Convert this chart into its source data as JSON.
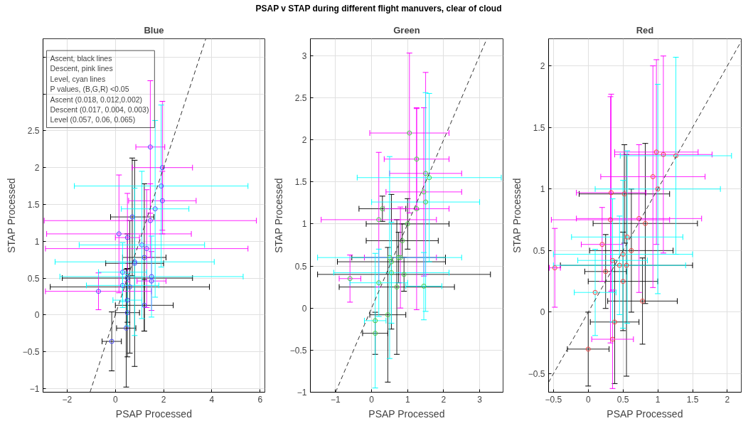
{
  "chart_data": [
    {
      "type": "scatter",
      "title": "Blue",
      "xlabel": "PSAP Processed",
      "ylabel": "STAP Processed",
      "xlim": [
        -3,
        6.2
      ],
      "ylim": [
        -1.05,
        3.75
      ],
      "xticks": [
        -2,
        0,
        2,
        4,
        6
      ],
      "yticks": [
        -1,
        -0.5,
        0,
        0.5,
        1,
        1.5,
        2,
        2.5,
        {
          "value": 3,
          "label": null
        },
        {
          "value": 3.5,
          "label": null
        }
      ],
      "grid": true,
      "marker": "circle",
      "annotations": [
        "Ascent, black lines\nDescent, pink lines\nLevel, cyan lines",
        "P values, (B,G,R) <0.05\nAscent (0.018, 0.012,0.002)\nDescent (0.017, 0.004,  0.003)\nLevel (0.057, 0.06, 0.065)"
      ],
      "series": [
        {
          "color": "#000000",
          "colors": [
            "#4a4aff",
            "#4a4aff",
            "#4a4aff",
            "#4a4aff",
            "#4a4aff",
            "#4a4aff",
            "#4a4aff",
            "#4a4aff",
            "#4a4aff"
          ],
          "x": [
            0.7,
            1.2,
            0.5,
            0.6,
            -0.15,
            0.45,
            1.2,
            0.8,
            0.5
          ],
          "values": [
            1.33,
            0.78,
            0.5,
            0.38,
            -0.36,
            -0.18,
            0.13,
            0.7,
            0.03
          ],
          "xerrors": [
            0.9,
            0.9,
            2.7,
            3.3,
            0.4,
            0.4,
            1.2,
            1.2,
            0.5
          ],
          "errors": [
            0.8,
            1.0,
            0.6,
            0.9,
            0.4,
            0.8,
            0.35,
            1.4,
            0.6
          ]
        },
        {
          "color": "#ff00ff",
          "colors": [
            "#4a4aff",
            "#4a4aff",
            "#4a4aff",
            "#4a4aff",
            "#4a4aff",
            "#4a4aff",
            "#4a4aff",
            "#4a4aff",
            "#4a4aff"
          ],
          "x": [
            1.45,
            1.95,
            1.95,
            1.45,
            0.15,
            1.3,
            -0.7,
            1.5,
            0.5
          ],
          "values": [
            2.28,
            2.0,
            1.55,
            1.28,
            1.1,
            0.9,
            0.32,
            0.46,
            1.05
          ],
          "xerrors": [
            0.6,
            1.25,
            1.4,
            4.4,
            3.0,
            4.2,
            2.2,
            0.6,
            0.5
          ],
          "errors": [
            0.9,
            0.9,
            0.4,
            0.5,
            0.8,
            0.8,
            0.25,
            0.4,
            0.6
          ]
        },
        {
          "color": "#00ffff",
          "colors": [
            "#4a4aff",
            "#4a4aff",
            "#4a4aff",
            "#4a4aff",
            "#4a4aff",
            "#4a4aff",
            "#4a4aff",
            "#4a4aff"
          ],
          "x": [
            1.9,
            1.65,
            0.8,
            1.1,
            0.3,
            1.5,
            0.3,
            0.5
          ],
          "values": [
            1.75,
            1.44,
            0.72,
            0.95,
            0.4,
            0.52,
            0.58,
            0.2
          ],
          "xerrors": [
            3.6,
            1.4,
            3.3,
            2.6,
            1.5,
            3.8,
            1.0,
            0.6
          ],
          "errors": [
            1.1,
            1.2,
            1.0,
            1.0,
            0.3,
            0.55,
            0.4,
            0.35
          ]
        },
        {
          "type": "line",
          "color": "#333333",
          "line_style": "dashed",
          "marker": "none",
          "x": [
            -1.05,
            3.75
          ],
          "values": [
            -1.05,
            3.75
          ]
        }
      ]
    },
    {
      "type": "scatter",
      "title": "Green",
      "xlabel": "PSAP Processed",
      "ylabel": "STAP Processed",
      "xlim": [
        -1.7,
        3.65
      ],
      "ylim": [
        -1,
        3.2
      ],
      "xticks": [
        -1,
        0,
        1,
        2,
        3
      ],
      "yticks": [
        -1,
        -0.5,
        0,
        0.5,
        1,
        1.5,
        2,
        2.5,
        3
      ],
      "grid": true,
      "marker": "circle",
      "annotations": [
        "PSAP v STAP during different flight manuvers, clear of cloud"
      ],
      "series": [
        {
          "color": "#000000",
          "colors": [
            "#44cc44",
            "#44cc44",
            "#44cc44",
            "#44cc44",
            "#44cc44",
            "#44cc44",
            "#44cc44",
            "#44cc44",
            "#44cc44"
          ],
          "x": [
            0.55,
            0.3,
            1.0,
            0.85,
            0.1,
            0.75,
            0.9,
            0.45,
            0.7
          ],
          "values": [
            0.55,
            1.18,
            1.0,
            0.8,
            -0.3,
            0.6,
            0.4,
            -0.08,
            0.25
          ],
          "xerrors": [
            1.5,
            0.65,
            1.15,
            1.0,
            0.35,
            1.3,
            2.4,
            0.5,
            1.6
          ],
          "errors": [
            0.8,
            0.15,
            0.3,
            0.2,
            0.25,
            0.3,
            0.2,
            0.8,
            0.8
          ]
        },
        {
          "color": "#ff00ff",
          "colors": [
            "#44cc44",
            "#44cc44",
            "#44cc44",
            "#44cc44",
            "#44cc44",
            "#44cc44",
            "#44cc44",
            "#44cc44"
          ],
          "x": [
            1.05,
            1.25,
            1.5,
            1.45,
            0.2,
            -0.6,
            1.25,
            0.8
          ],
          "values": [
            2.08,
            1.77,
            1.6,
            1.38,
            1.05,
            0.35,
            1.18,
            0.6
          ],
          "xerrors": [
            1.1,
            0.9,
            1.0,
            1.05,
            1.6,
            0.3,
            0.9,
            1.0
          ],
          "errors": [
            0.95,
            0.6,
            1.2,
            1.0,
            0.8,
            0.28,
            1.2,
            0.6
          ]
        },
        {
          "color": "#00ffff",
          "colors": [
            "#44cc44",
            "#44cc44",
            "#44cc44",
            "#44cc44",
            "#44cc44",
            "#44cc44",
            "#44cc44"
          ],
          "x": [
            1.5,
            1.6,
            0.5,
            0.2,
            1.45,
            0.55,
            0.1
          ],
          "values": [
            1.26,
            1.55,
            0.6,
            0.3,
            0.26,
            0.42,
            -0.15
          ],
          "xerrors": [
            1.5,
            2.0,
            2.0,
            0.8,
            0.5,
            1.6,
            0.3
          ],
          "errors": [
            1.3,
            1.0,
            1.2,
            0.4,
            0.4,
            0.6,
            0.8
          ]
        },
        {
          "type": "line",
          "color": "#333333",
          "line_style": "dashed",
          "marker": "none",
          "x": [
            -1,
            3.2
          ],
          "values": [
            -1,
            3.2
          ]
        }
      ]
    },
    {
      "type": "scatter",
      "title": "Red",
      "xlabel": "PSAP Processed",
      "ylabel": "STAP Processed",
      "xlim": [
        -0.57,
        2.2
      ],
      "ylim": [
        -0.65,
        2.22
      ],
      "xticks": [
        -0.5,
        0,
        0.5,
        1,
        1.5,
        2
      ],
      "yticks": [
        -0.5,
        0,
        0.5,
        1,
        1.5,
        2
      ],
      "grid": true,
      "marker": "circle",
      "series": [
        {
          "color": "#000000",
          "colors": [
            "#ee4444",
            "#ee4444",
            "#ee4444",
            "#ee4444",
            "#ee4444",
            "#ee4444",
            "#ee4444",
            "#ee4444",
            "#ee4444"
          ],
          "x": [
            0.52,
            0.62,
            0.55,
            0.0,
            0.78,
            0.5,
            0.38,
            0.82,
            0.25
          ],
          "values": [
            0.96,
            0.5,
            0.38,
            -0.3,
            0.09,
            0.25,
            -0.08,
            0.72,
            0.33
          ],
          "xerrors": [
            0.65,
            0.6,
            0.95,
            0.3,
            0.5,
            0.5,
            0.35,
            0.75,
            0.3
          ],
          "errors": [
            0.4,
            0.5,
            0.9,
            0.3,
            0.35,
            0.4,
            0.5,
            0.65,
            0.3
          ]
        },
        {
          "color": "#ff00ff",
          "colors": [
            "#ee4444",
            "#ee4444",
            "#ee4444",
            "#ee4444",
            "#ee4444",
            "#ee4444",
            "#ee4444",
            "#ee4444",
            "#ee4444"
          ],
          "x": [
            0.98,
            1.08,
            0.93,
            0.33,
            -0.48,
            0.32,
            0.73,
            0.2,
            0.35
          ],
          "values": [
            1.3,
            1.28,
            1.1,
            0.97,
            0.36,
            0.75,
            0.76,
            0.55,
            -0.22
          ],
          "xerrors": [
            0.6,
            0.7,
            0.75,
            0.5,
            0.08,
            0.85,
            0.9,
            0.3,
            0.3
          ],
          "errors": [
            0.75,
            0.8,
            0.9,
            0.8,
            0.32,
            1.0,
            0.6,
            0.3,
            0.4
          ]
        },
        {
          "color": "#00ffff",
          "colors": [
            "#ee4444",
            "#ee4444",
            "#ee4444",
            "#ee4444",
            "#ee4444",
            "#ee4444",
            "#ee4444"
          ],
          "x": [
            1.26,
            1.0,
            0.56,
            0.5,
            0.1,
            0.45,
            0.35
          ],
          "values": [
            1.27,
            1.0,
            0.61,
            0.47,
            0.16,
            0.38,
            0.42
          ],
          "xerrors": [
            0.8,
            0.9,
            0.8,
            1.0,
            0.3,
            0.95,
            0.5
          ],
          "errors": [
            0.8,
            0.85,
            0.7,
            0.6,
            0.35,
            0.4,
            0.5
          ]
        },
        {
          "type": "line",
          "color": "#333333",
          "line_style": "dashed",
          "marker": "none",
          "x": [
            -0.57,
            2.2
          ],
          "values": [
            -0.57,
            2.2
          ]
        }
      ]
    }
  ]
}
